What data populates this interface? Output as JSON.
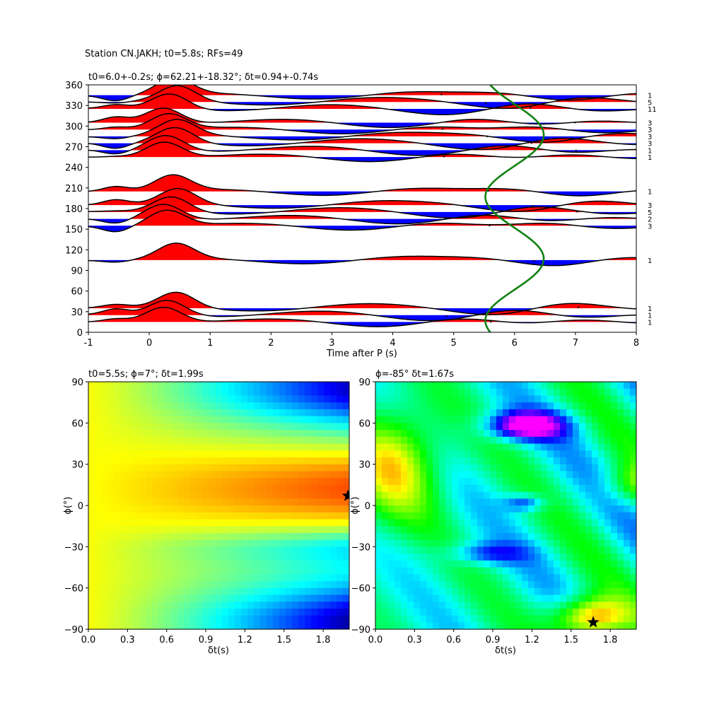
{
  "suptitle": "Station CN.JAKH; t0=5.8s; RFs=49",
  "chart_data": [
    {
      "type": "line",
      "title": "t0=6.0+-0.2s; ϕ=62.21+-18.32°; δt=0.94+-0.74s",
      "xlabel": "Time after P (s)",
      "ylabel": "",
      "xlim": [
        -1,
        8
      ],
      "ylim": [
        0,
        360
      ],
      "xticks": [
        "-1",
        "0",
        "1",
        "2",
        "3",
        "4",
        "5",
        "6",
        "7",
        "8"
      ],
      "yticks": [
        "0",
        "30",
        "60",
        "90",
        "120",
        "150",
        "180",
        "210",
        "240",
        "270",
        "300",
        "330",
        "360"
      ],
      "traces": [
        {
          "baz": 345,
          "count": "1"
        },
        {
          "baz": 335,
          "count": "5"
        },
        {
          "baz": 325,
          "count": "11"
        },
        {
          "baz": 305,
          "count": "3"
        },
        {
          "baz": 295,
          "count": "3"
        },
        {
          "baz": 285,
          "count": "3"
        },
        {
          "baz": 275,
          "count": "3"
        },
        {
          "baz": 265,
          "count": "1"
        },
        {
          "baz": 255,
          "count": "1"
        },
        {
          "baz": 205,
          "count": "1"
        },
        {
          "baz": 185,
          "count": "3"
        },
        {
          "baz": 175,
          "count": "5"
        },
        {
          "baz": 165,
          "count": "2"
        },
        {
          "baz": 155,
          "count": "3"
        },
        {
          "baz": 105,
          "count": "1"
        },
        {
          "baz": 35,
          "count": "1"
        },
        {
          "baz": 25,
          "count": "1"
        },
        {
          "baz": 15,
          "count": "1"
        }
      ],
      "curve_color": "#108010",
      "positive_color": "#ff0000",
      "negative_color": "#0000ff"
    },
    {
      "type": "heatmap",
      "title": "t0=5.5s; ϕ=7°; δt=1.99s",
      "xlabel": "δt(s)",
      "ylabel": "ϕ(°)",
      "xlim": [
        0,
        2
      ],
      "ylim": [
        -90,
        90
      ],
      "xticks": [
        "0.0",
        "0.3",
        "0.6",
        "0.9",
        "1.2",
        "1.5",
        "1.8"
      ],
      "yticks": [
        "−90",
        "−60",
        "−30",
        "0",
        "30",
        "60",
        "90"
      ],
      "best": {
        "dt": 1.99,
        "phi": 7
      },
      "colormap": "jet"
    },
    {
      "type": "heatmap",
      "title": "ϕ=-85° δt=1.67s",
      "xlabel": "δt(s)",
      "ylabel": "ϕ(°)",
      "xlim": [
        0,
        2
      ],
      "ylim": [
        -90,
        90
      ],
      "xticks": [
        "0.0",
        "0.3",
        "0.6",
        "0.9",
        "1.2",
        "1.5",
        "1.8"
      ],
      "yticks": [
        "−90",
        "−60",
        "−30",
        "0",
        "30",
        "60",
        "90"
      ],
      "best": {
        "dt": 1.67,
        "phi": -85
      },
      "colormap": "hsv"
    }
  ]
}
